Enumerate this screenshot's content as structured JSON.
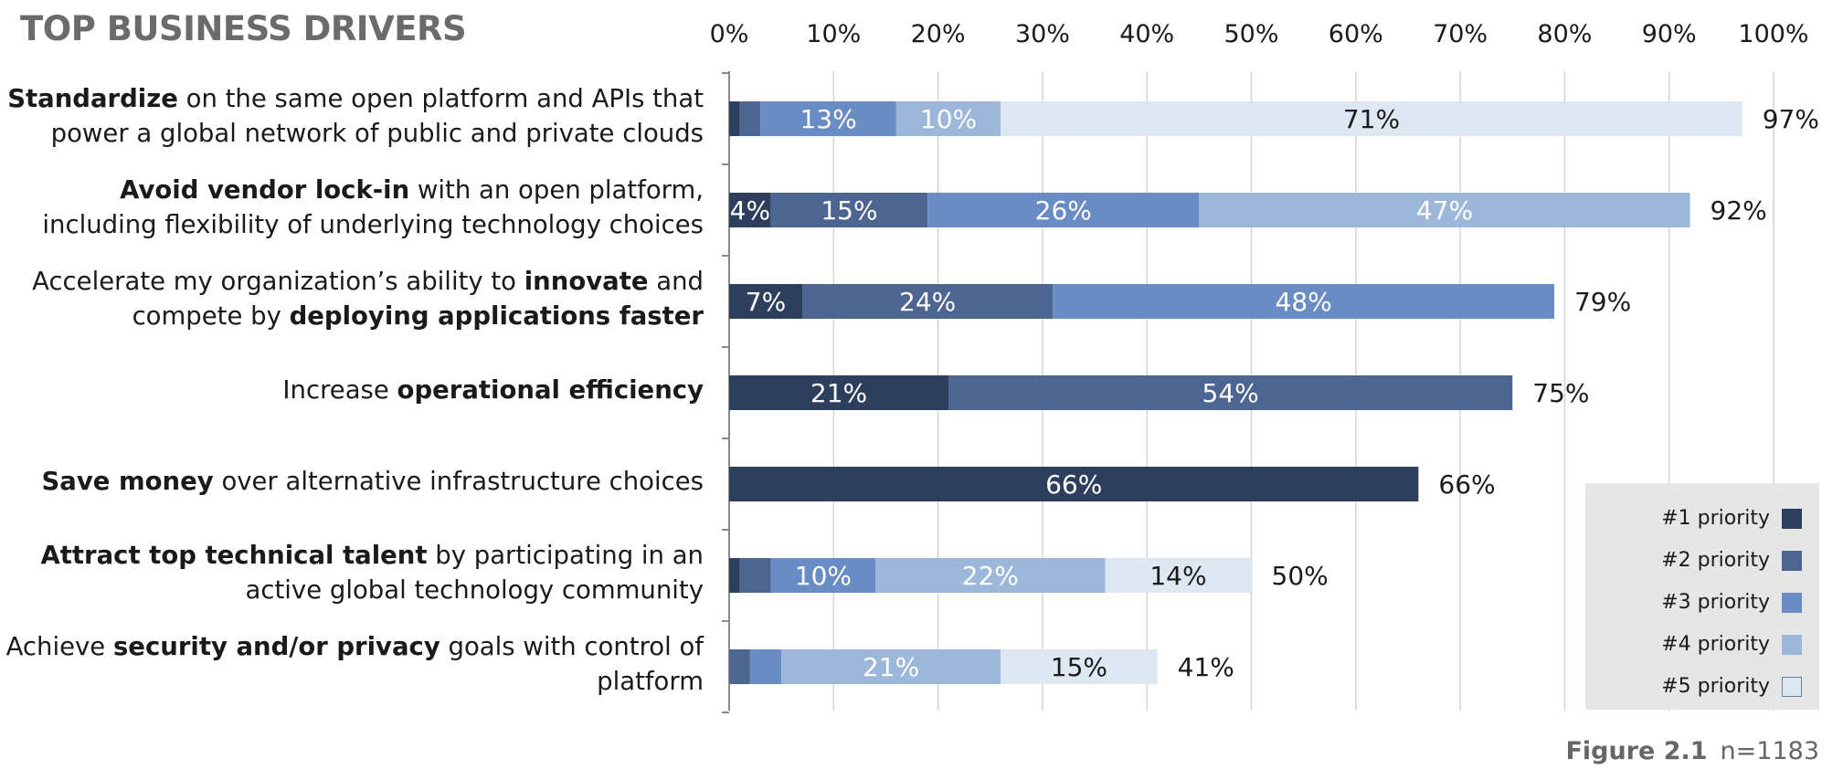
{
  "chart_data": {
    "type": "bar",
    "orientation": "horizontal",
    "stacked": true,
    "title": "TOP BUSINESS DRIVERS",
    "xlim": [
      0,
      100
    ],
    "x_ticks": [
      "0%",
      "10%",
      "20%",
      "30%",
      "40%",
      "50%",
      "60%",
      "70%",
      "80%",
      "90%",
      "100%"
    ],
    "grid": "vertical",
    "legend_position": "bottom-right",
    "categories": [
      [
        {
          "text": "Standardize",
          "bold": true
        },
        {
          "text": " on the same open platform and APIs that power a global network of public and private clouds",
          "bold": false
        }
      ],
      [
        {
          "text": "Avoid vendor lock-in",
          "bold": true
        },
        {
          "text": " with an open platform, including flexibility of underlying technology choices",
          "bold": false
        }
      ],
      [
        {
          "text": "Accelerate my organization’s ability to ",
          "bold": false
        },
        {
          "text": "innovate",
          "bold": true
        },
        {
          "text": " and compete by ",
          "bold": false
        },
        {
          "text": "deploying applications faster",
          "bold": true
        }
      ],
      [
        {
          "text": "Increase ",
          "bold": false
        },
        {
          "text": "operational efficiency",
          "bold": true
        }
      ],
      [
        {
          "text": "Save money",
          "bold": true
        },
        {
          "text": " over alternative infrastructure choices",
          "bold": false
        }
      ],
      [
        {
          "text": "Attract top technical talent",
          "bold": true
        },
        {
          "text": " by participating in an active global technology community",
          "bold": false
        }
      ],
      [
        {
          "text": "Achieve ",
          "bold": false
        },
        {
          "text": "security and/or privacy",
          "bold": true
        },
        {
          "text": " goals with control of platform",
          "bold": false
        }
      ]
    ],
    "series": [
      {
        "name": "#1 priority",
        "color": "#2e3f5e",
        "label_color": "#ffffff",
        "values": [
          1,
          4,
          7,
          21,
          66,
          1,
          0
        ],
        "labels": [
          "",
          "4%",
          "7%",
          "21%",
          "66%",
          "",
          ""
        ]
      },
      {
        "name": "#2 priority",
        "color": "#4d6591",
        "label_color": "#ffffff",
        "values": [
          2,
          15,
          24,
          54,
          0,
          3,
          2
        ],
        "labels": [
          "",
          "15%",
          "24%",
          "54%",
          "",
          "",
          ""
        ]
      },
      {
        "name": "#3 priority",
        "color": "#6a8cc5",
        "label_color": "#ffffff",
        "values": [
          13,
          26,
          48,
          0,
          0,
          10,
          3
        ],
        "labels": [
          "13%",
          "26%",
          "48%",
          "",
          "",
          "10%",
          ""
        ]
      },
      {
        "name": "#4 priority",
        "color": "#9db7db",
        "label_color": "#ffffff",
        "values": [
          10,
          47,
          0,
          0,
          0,
          22,
          21
        ],
        "labels": [
          "10%",
          "47%",
          "",
          "",
          "",
          "22%",
          "21%"
        ]
      },
      {
        "name": "#5 priority",
        "color": "#dde8f3",
        "label_color": "#1a1a1a",
        "values": [
          71,
          0,
          0,
          0,
          0,
          14,
          15
        ],
        "labels": [
          "71%",
          "",
          "",
          "",
          "",
          "14%",
          "15%"
        ]
      }
    ],
    "totals": [
      "97%",
      "92%",
      "79%",
      "75%",
      "66%",
      "50%",
      "41%"
    ],
    "total_values": [
      97,
      92,
      79,
      75,
      66,
      50,
      41
    ]
  },
  "caption": {
    "figure": "Figure 2.1",
    "n": "n=1183"
  }
}
